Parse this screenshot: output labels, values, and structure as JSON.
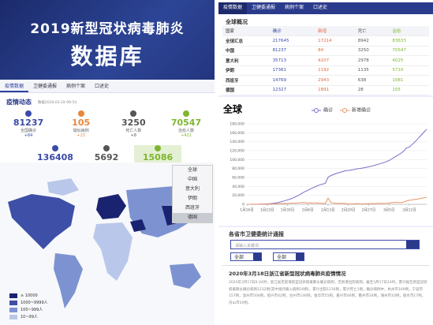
{
  "left": {
    "banner": {
      "title": "2019新型冠状病毒肺炎",
      "subtitle": "数据库"
    },
    "nav": [
      "疫情数据",
      "卫健委通报",
      "病例个案",
      "口述史"
    ],
    "dynamics": {
      "title": "疫情动态",
      "time": "数据2020.03.19 09:54"
    },
    "stats": [
      {
        "value": 81237,
        "label": "全国确诊",
        "change": "+84",
        "color": "#3b4aa8"
      },
      {
        "value": 105,
        "label": "疑似病例",
        "change": "+23",
        "color": "#e8863c"
      },
      {
        "value": 3250,
        "label": "死亡人数",
        "change": "+8",
        "color": "#555555"
      },
      {
        "value": 70547,
        "label": "治愈人数",
        "change": "+422",
        "color": "#7fb52e"
      }
    ],
    "stats2": [
      {
        "value": 136408,
        "color": "#3b4aa8"
      },
      {
        "value": 5692,
        "color": "#555555"
      },
      {
        "value": 15086,
        "color": "#7fb52e"
      }
    ],
    "map": {
      "options": [
        "全球",
        "中国",
        "意大利",
        "伊朗",
        "西班牙",
        "德国"
      ],
      "legend": [
        {
          "label": "≥ 10000",
          "color": "#1a2370"
        },
        {
          "label": "1000~9999人",
          "color": "#3e4fa8"
        },
        {
          "label": "100~999人",
          "color": "#7d93d1"
        },
        {
          "label": "10~99人",
          "color": "#b9c8ea"
        }
      ]
    }
  },
  "right": {
    "nav": [
      "疫情数据",
      "卫健委通报",
      "病例个案",
      "口述史"
    ],
    "overview": {
      "title": "全球概况",
      "headers": [
        "国家",
        "确诊",
        "新增",
        "死亡",
        "治愈"
      ],
      "rows": [
        [
          "全球汇总",
          217645,
          17214,
          8942,
          83633
        ],
        [
          "中国",
          81237,
          84,
          3250,
          70547
        ],
        [
          "意大利",
          35713,
          4207,
          2978,
          4025
        ],
        [
          "伊朗",
          17361,
          1192,
          1135,
          5710
        ],
        [
          "西班牙",
          14769,
          2943,
          638,
          1081
        ],
        [
          "德国",
          12327,
          1891,
          28,
          105
        ]
      ]
    },
    "bulletin": {
      "title": "各省市卫健委统计通报",
      "placeholder": "请输入关键词",
      "selects": [
        "全部",
        "全部"
      ],
      "notice_title": "2020年3月18日浙江省新型冠状病毒肺炎疫情情况",
      "notice_text": "2020年3月17日0-24时，浙江省无新增新型冠状病毒肺炎确诊病例，无新增出院病例。截至3月17日24时，累计报告新型冠状病毒肺炎确诊病例1232例(其中境外输入病例16例)，累计出院1216例，累计死亡1例。确诊病例中，杭州市169例，宁波市157例，温州市504例，绍兴市42例，台州市146例，金华市55例，嘉兴市46例，衢州市24例，湖州市10例，丽水市17例，舟山市10例。"
    }
  },
  "chart_data": {
    "type": "line",
    "title": "全球",
    "categories": [
      "1月16日",
      null,
      null,
      null,
      null,
      null,
      null,
      "1月23日",
      null,
      null,
      null,
      null,
      null,
      null,
      "1月30日",
      null,
      null,
      null,
      null,
      null,
      null,
      "2月6日",
      null,
      null,
      null,
      null,
      null,
      null,
      "2月13日",
      null,
      null,
      null,
      null,
      null,
      null,
      "2月20日",
      null,
      null,
      null,
      null,
      null,
      null,
      "2月27日",
      null,
      null,
      null,
      null,
      null,
      null,
      "3月5日",
      null,
      null,
      null,
      null,
      null,
      null,
      "3月12日",
      null,
      null,
      null,
      null,
      null,
      null
    ],
    "series": [
      {
        "name": "确诊",
        "color": "#7b6cc9",
        "values": [
          50,
          60,
          120,
          200,
          300,
          450,
          600,
          850,
          1300,
          2000,
          2900,
          4500,
          6000,
          7800,
          9800,
          11900,
          14500,
          17400,
          20600,
          24600,
          28300,
          31200,
          34600,
          37600,
          40600,
          43100,
          45200,
          46600,
          60400,
          64400,
          67100,
          69200,
          71300,
          73300,
          75200,
          75700,
          76800,
          77900,
          79400,
          80200,
          81100,
          82500,
          83800,
          85500,
          87100,
          89000,
          91000,
          93000,
          95200,
          97900,
          101700,
          105800,
          109800,
          113600,
          118600,
          125900,
          128000,
          134000,
          140000,
          147000,
          154000,
          161000,
          168000
        ]
      },
      {
        "name": "新增确诊",
        "color": "#e8956a",
        "values": [
          10,
          10,
          60,
          80,
          100,
          150,
          150,
          250,
          450,
          700,
          900,
          1600,
          1500,
          1800,
          2000,
          2100,
          2600,
          2900,
          3200,
          4000,
          3700,
          2900,
          3400,
          3000,
          3000,
          2500,
          2100,
          1400,
          13800,
          4000,
          2700,
          2100,
          2100,
          2000,
          1900,
          500,
          1100,
          1100,
          1500,
          800,
          900,
          1400,
          1300,
          1700,
          1600,
          1900,
          2000,
          2000,
          2200,
          2700,
          3800,
          4100,
          4000,
          3800,
          5000,
          7300,
          9000,
          10000,
          11000,
          12000,
          13500,
          14500,
          16000
        ]
      }
    ],
    "ylim": [
      0,
      180000
    ],
    "yticks": [
      0,
      {
        "value": 20000,
        "label": "20,000"
      },
      {
        "value": 40000,
        "label": "40,000"
      },
      {
        "value": 60000,
        "label": "60,000"
      },
      {
        "value": 80000,
        "label": "80,000"
      },
      {
        "value": 100000,
        "label": "100,000"
      },
      {
        "value": 120000,
        "label": "120,000"
      },
      {
        "value": 140000,
        "label": "140,000"
      },
      {
        "value": 160000,
        "label": "160,000"
      },
      {
        "value": 180000,
        "label": "180,000"
      }
    ],
    "grid": true
  }
}
